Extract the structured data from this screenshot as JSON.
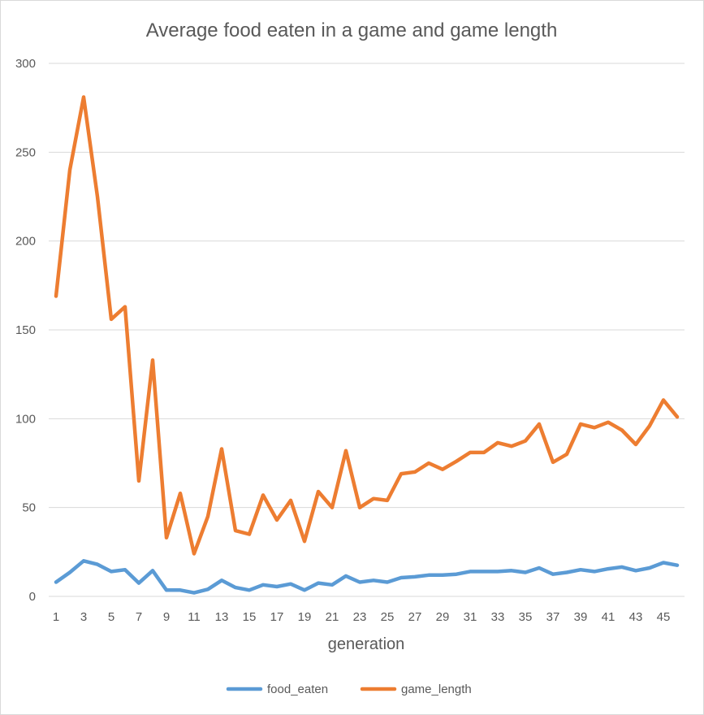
{
  "chart_data": {
    "type": "line",
    "title": "Average food eaten in a game and game length",
    "xlabel": "generation",
    "ylabel": "",
    "ylim": [
      0,
      300
    ],
    "y_ticks": [
      0,
      50,
      100,
      150,
      200,
      250,
      300
    ],
    "x": [
      1,
      2,
      3,
      4,
      5,
      6,
      7,
      8,
      9,
      10,
      11,
      12,
      13,
      14,
      15,
      16,
      17,
      18,
      19,
      20,
      21,
      22,
      23,
      24,
      25,
      26,
      27,
      28,
      29,
      30,
      31,
      32,
      33,
      34,
      35,
      36,
      37,
      38,
      39,
      40,
      41,
      42,
      43,
      44,
      45,
      46
    ],
    "x_tick_labels": [
      1,
      3,
      5,
      7,
      9,
      11,
      13,
      15,
      17,
      19,
      21,
      23,
      25,
      27,
      29,
      31,
      33,
      35,
      37,
      39,
      41,
      43,
      45
    ],
    "grid": true,
    "legend_position": "bottom",
    "series": [
      {
        "name": "food_eaten",
        "color": "#5b9bd5",
        "values": [
          8,
          13.5,
          20,
          18,
          14,
          15,
          7.5,
          14.5,
          3.5,
          3.5,
          2,
          4,
          9,
          5,
          3.5,
          6.5,
          5.5,
          7,
          3.5,
          7.5,
          6.5,
          11.5,
          8,
          9,
          8,
          10.5,
          11,
          12,
          12,
          12.5,
          14,
          14,
          14,
          14.5,
          13.5,
          16,
          12.5,
          13.5,
          15,
          14,
          15.5,
          16.5,
          14.5,
          16,
          19,
          17.5
        ]
      },
      {
        "name": "game_length",
        "color": "#ed7d31",
        "values": [
          169,
          240,
          281,
          225,
          156,
          163,
          65,
          133,
          33,
          58,
          24,
          45,
          83,
          37,
          35,
          57,
          43,
          54,
          31,
          59,
          50,
          82,
          50,
          55,
          54,
          69,
          70,
          75,
          71.5,
          76,
          81,
          81,
          86.5,
          84.5,
          87.5,
          97,
          75.5,
          80,
          97,
          95,
          98,
          93.5,
          85.5,
          96,
          110.5,
          101
        ]
      }
    ]
  }
}
